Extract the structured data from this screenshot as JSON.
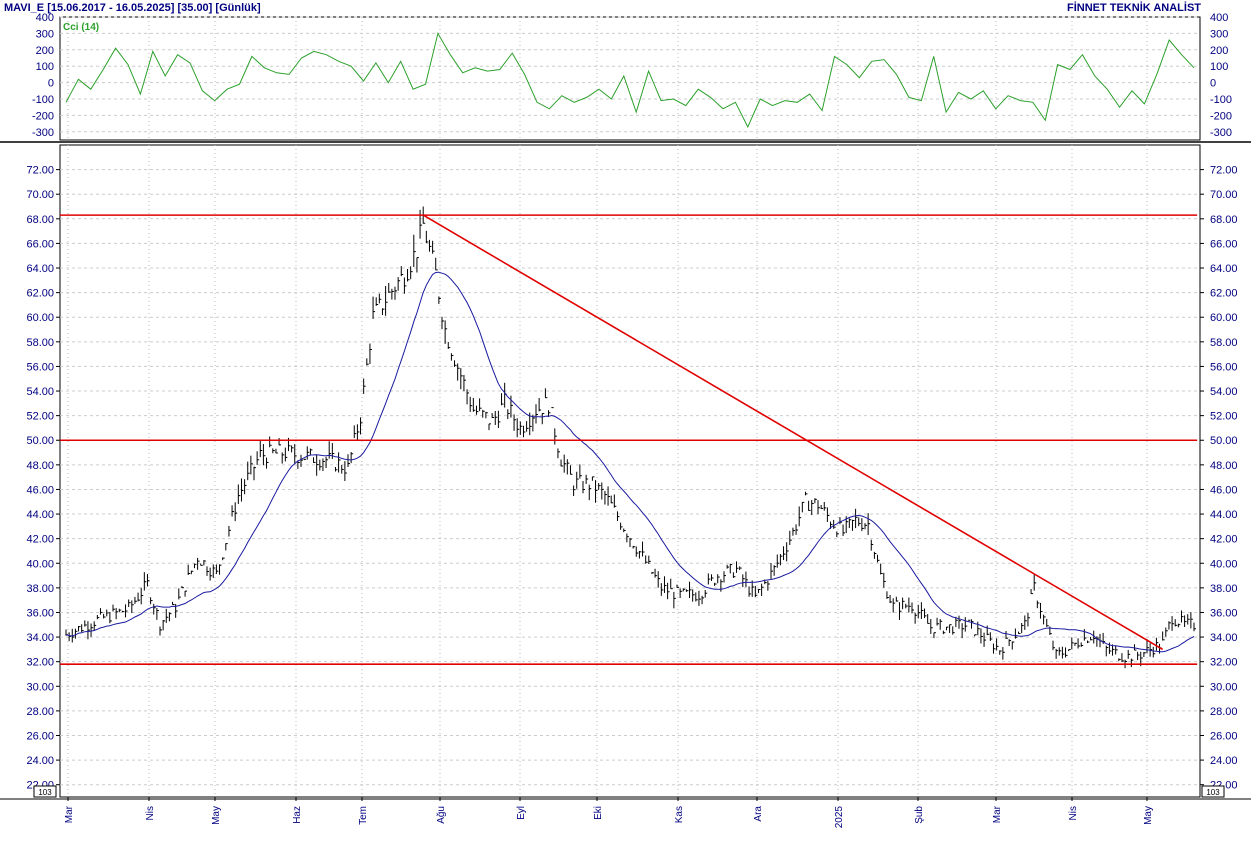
{
  "header": {
    "symbol": "MAVI_E",
    "range": "[15.06.2017 - 16.05.2025]",
    "param": "[35.00]",
    "period": "[Günlük]",
    "brand": "FİNNET TEKNİK ANALİST"
  },
  "scale_note": "10^3",
  "colors": {
    "price_bars": "#000000",
    "moving_average": "#1a1aa0",
    "cci": "#2ca02c",
    "trendlines": "#e00000",
    "grid": "#bbbbbb",
    "tick_text": "#000080"
  },
  "chart_data": [
    {
      "type": "line",
      "title": "",
      "series": [
        {
          "name": "Cci (14)",
          "values": [
            -120,
            20,
            -40,
            80,
            210,
            110,
            -70,
            190,
            40,
            170,
            120,
            -50,
            -110,
            -40,
            -10,
            160,
            90,
            60,
            50,
            150,
            190,
            170,
            130,
            100,
            10,
            120,
            0,
            130,
            -40,
            -10,
            300,
            170,
            60,
            90,
            70,
            80,
            180,
            50,
            -120,
            -160,
            -80,
            -120,
            -90,
            -40,
            -100,
            40,
            -180,
            70,
            -110,
            -100,
            -140,
            -40,
            -90,
            -160,
            -120,
            -270,
            -100,
            -140,
            -110,
            -120,
            -70,
            -170,
            160,
            110,
            30,
            130,
            140,
            50,
            -90,
            -110,
            160,
            -180,
            -60,
            -100,
            -50,
            -160,
            -80,
            -110,
            -120,
            -230,
            110,
            80,
            170,
            40,
            -40,
            -150,
            -50,
            -130,
            50,
            260,
            170,
            90
          ]
        }
      ],
      "ylim": [
        -350,
        400
      ],
      "y_ticks": [
        400,
        300,
        200,
        100,
        0,
        -100,
        -200,
        -300
      ],
      "y_tick_labels": [
        "400",
        "300",
        "200",
        "100",
        "0",
        "-100",
        "-200",
        "-300"
      ]
    },
    {
      "type": "bar",
      "title": "",
      "ylim": [
        21,
        74
      ],
      "y_ticks": [
        22,
        24,
        26,
        28,
        30,
        32,
        34,
        36,
        38,
        40,
        42,
        44,
        46,
        48,
        50,
        52,
        54,
        56,
        58,
        60,
        62,
        64,
        66,
        68,
        70,
        72
      ],
      "y_tick_labels": [
        "22.00",
        "24.00",
        "26.00",
        "28.00",
        "30.00",
        "32.00",
        "34.00",
        "36.00",
        "38.00",
        "40.00",
        "42.00",
        "44.00",
        "46.00",
        "48.00",
        "50.00",
        "52.00",
        "54.00",
        "56.00",
        "58.00",
        "60.00",
        "62.00",
        "64.00",
        "66.00",
        "68.00",
        "70.00",
        "72.00"
      ],
      "x_labels": [
        "Mar",
        "Nis",
        "May",
        "Haz",
        "Tem",
        "Ağu",
        "Eyl",
        "Eki",
        "Kas",
        "Ara",
        "2025",
        "Şub",
        "Mar",
        "Nis",
        "May"
      ],
      "price_anchors": [
        [
          0,
          34.2
        ],
        [
          10,
          35.4
        ],
        [
          20,
          36.3
        ],
        [
          26,
          38.3
        ],
        [
          30,
          35.1
        ],
        [
          35,
          36.5
        ],
        [
          42,
          40.5
        ],
        [
          48,
          39.1
        ],
        [
          55,
          45.5
        ],
        [
          62,
          48.8
        ],
        [
          70,
          49.0
        ],
        [
          76,
          48.7
        ],
        [
          82,
          48.5
        ],
        [
          86,
          48.2
        ],
        [
          90,
          47.7
        ],
        [
          94,
          52.0
        ],
        [
          98,
          60.0
        ],
        [
          102,
          61.5
        ],
        [
          108,
          63.5
        ],
        [
          112,
          65.5
        ],
        [
          114,
          67.5
        ],
        [
          118,
          63.5
        ],
        [
          121,
          59.0
        ],
        [
          125,
          56.0
        ],
        [
          130,
          52.5
        ],
        [
          136,
          51.5
        ],
        [
          140,
          53.0
        ],
        [
          145,
          51.0
        ],
        [
          150,
          52.5
        ],
        [
          154,
          53.0
        ],
        [
          158,
          48.5
        ],
        [
          162,
          46.5
        ],
        [
          168,
          46.4
        ],
        [
          172,
          45.5
        ],
        [
          178,
          43.0
        ],
        [
          184,
          40.5
        ],
        [
          190,
          38.0
        ],
        [
          196,
          37.4
        ],
        [
          202,
          37.5
        ],
        [
          208,
          39.0
        ],
        [
          214,
          39.5
        ],
        [
          220,
          37.2
        ],
        [
          226,
          39.5
        ],
        [
          232,
          42.5
        ],
        [
          236,
          45.0
        ],
        [
          240,
          44.8
        ],
        [
          244,
          43.5
        ],
        [
          248,
          42.5
        ],
        [
          252,
          43.5
        ],
        [
          256,
          43.2
        ],
        [
          260,
          39.0
        ],
        [
          264,
          36.5
        ],
        [
          270,
          36.6
        ],
        [
          276,
          34.8
        ],
        [
          282,
          34.8
        ],
        [
          288,
          35.0
        ],
        [
          294,
          33.8
        ],
        [
          298,
          33.0
        ],
        [
          302,
          34.0
        ],
        [
          306,
          35.0
        ],
        [
          309,
          38.0
        ],
        [
          312,
          35.5
        ],
        [
          316,
          32.5
        ],
        [
          320,
          33.0
        ],
        [
          324,
          33.8
        ],
        [
          328,
          34.2
        ],
        [
          332,
          33.0
        ],
        [
          338,
          32.4
        ],
        [
          343,
          32.6
        ],
        [
          346,
          33.0
        ],
        [
          350,
          33.5
        ],
        [
          353,
          35.6
        ],
        [
          357,
          35.0
        ]
      ],
      "series": [
        {
          "name": "",
          "style": "hlc-bars"
        },
        {
          "name": "",
          "style": "line"
        }
      ]
    }
  ],
  "trendlines": [
    {
      "name": "resistance-68",
      "from": [
        -3,
        68.3
      ],
      "to": [
        361,
        68.3
      ]
    },
    {
      "name": "level-50",
      "from": [
        -3,
        50.0
      ],
      "to": [
        361,
        50.0
      ]
    },
    {
      "name": "support-31-8",
      "from": [
        -3,
        31.8
      ],
      "to": [
        361,
        31.8
      ]
    },
    {
      "name": "down-trend",
      "from": [
        114,
        68.3
      ],
      "to": [
        350,
        33.0
      ]
    }
  ]
}
